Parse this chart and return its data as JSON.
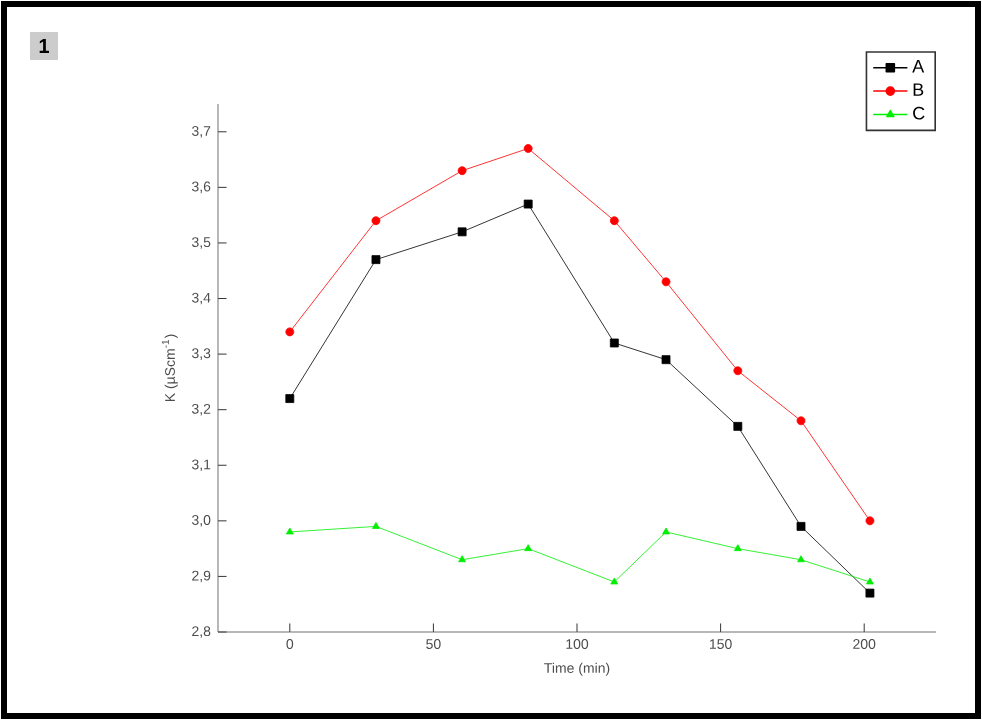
{
  "chart_data": {
    "type": "line",
    "xlabel": "Time (min)",
    "ylabel": "K (µScm$^{-1}$)",
    "annotations": [
      "1"
    ],
    "x": [
      0,
      30,
      60,
      83,
      113,
      131,
      156,
      178,
      202
    ],
    "series": [
      {
        "name": "A",
        "color": "#000000",
        "marker": "square",
        "values": [
          3.22,
          3.47,
          3.52,
          3.57,
          3.32,
          3.29,
          3.17,
          2.99,
          2.87
        ]
      },
      {
        "name": "B",
        "color": "#ff0000",
        "marker": "circle",
        "values": [
          3.34,
          3.54,
          3.63,
          3.67,
          3.54,
          3.43,
          3.27,
          3.18,
          3.0
        ]
      },
      {
        "name": "C",
        "color": "#00ee00",
        "marker": "triangle",
        "values": [
          2.98,
          2.99,
          2.93,
          2.95,
          2.89,
          2.98,
          2.95,
          2.93,
          2.89
        ]
      }
    ],
    "xlim": [
      -25,
      225
    ],
    "xticks": [
      0,
      50,
      100,
      150,
      200
    ],
    "ylim": [
      2.8,
      3.75
    ],
    "yticks": [
      {
        "value": 2.8,
        "label": "2,8"
      },
      {
        "value": 2.9,
        "label": "2,9"
      },
      {
        "value": 3.0,
        "label": "3,0"
      },
      {
        "value": 3.1,
        "label": "3,1"
      },
      {
        "value": 3.2,
        "label": "3,2"
      },
      {
        "value": 3.3,
        "label": "3,3"
      },
      {
        "value": 3.4,
        "label": "3,4"
      },
      {
        "value": 3.5,
        "label": "3,5"
      },
      {
        "value": 3.6,
        "label": "3,6"
      },
      {
        "value": 3.7,
        "label": "3,7"
      }
    ],
    "legend": "top right",
    "grid": false,
    "line_style": "solid"
  }
}
